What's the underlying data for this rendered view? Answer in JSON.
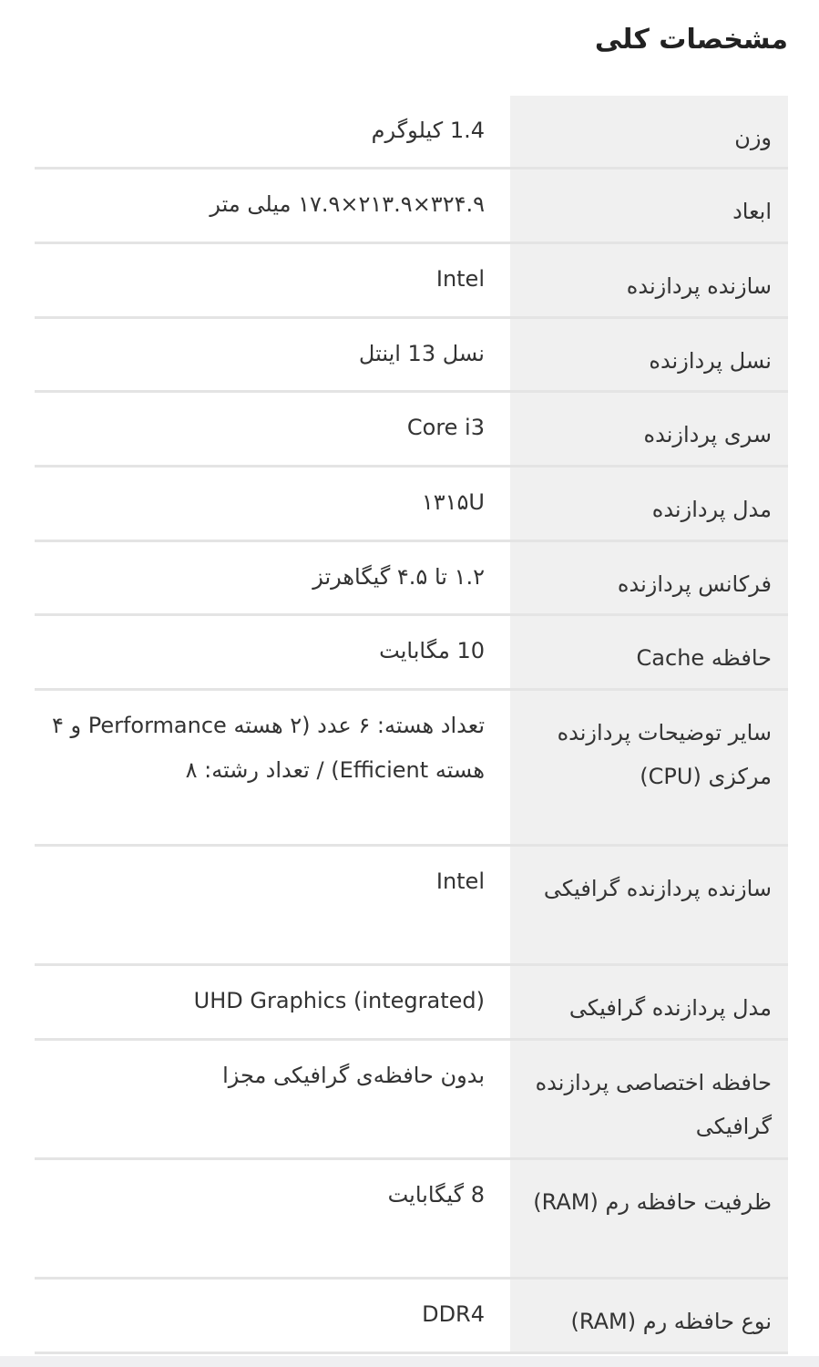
{
  "section_title": "مشخصات کلی",
  "rows": [
    {
      "label": "وزن",
      "value": "1.4 کیلوگرم"
    },
    {
      "label": "ابعاد",
      "value": "۳۲۴.۹×۲۱۳.۹×۱۷.۹ میلی متر"
    },
    {
      "label": "سازنده پردازنده",
      "value": "Intel"
    },
    {
      "label": "نسل پردازنده",
      "value": "نسل 13 اینتل"
    },
    {
      "label": "سری پردازنده",
      "value": "Core i3"
    },
    {
      "label": "مدل پردازنده",
      "value": "۱۳۱۵U"
    },
    {
      "label": "فرکانس پردازنده",
      "value": "۱.۲ تا ۴.۵ گیگاهرتز"
    },
    {
      "label": "حافظه Cache",
      "value": "10 مگابایت"
    },
    {
      "label": "سایر توضیحات پردازنده مرکزی (CPU)",
      "value": "تعداد هسته: ۶ عدد (۲ هسته Performance و ۴ هسته Efficient) / تعداد رشته: ۸"
    },
    {
      "label": "سازنده پردازنده گرافیکی",
      "value": "Intel"
    },
    {
      "label": "مدل پردازنده گرافیکی",
      "value": "UHD Graphics (integrated)"
    },
    {
      "label": "حافظه اختصاصی پردازنده گرافیکی",
      "value": "بدون حافظه‌ی گرافیکی مجزا"
    },
    {
      "label": "ظرفیت حافظه رم (RAM)",
      "value": "8 گیگابایت"
    },
    {
      "label": "نوع حافظه رم (RAM)",
      "value": "DDR4"
    }
  ]
}
